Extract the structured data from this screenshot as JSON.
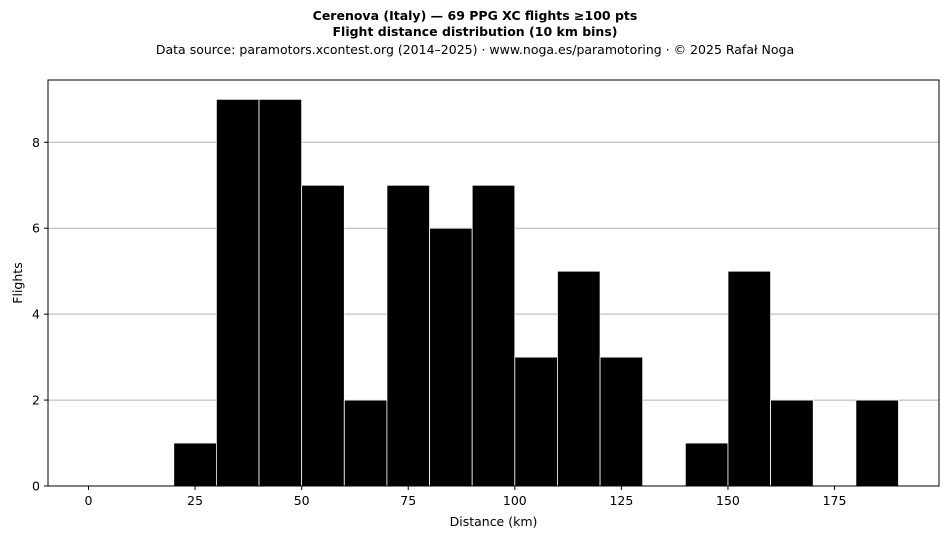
{
  "header": {
    "title_line1": "Cerenova (Italy)  —  69 PPG XC flights ≥100 pts",
    "title_line2": "Flight distance distribution (10 km bins)",
    "subtitle": "Data source: paramotors.xcontest.org (2014–2025)  ·  www.noga.es/paramotoring  ·  © 2025 Rafał Noga"
  },
  "chart_data": {
    "type": "bar",
    "title": "Cerenova (Italy)  —  69 PPG XC flights ≥100 pts",
    "subtitle": "Flight distance distribution (10 km bins)",
    "xlabel": "Distance (km)",
    "ylabel": "Flights",
    "bin_width_km": 10,
    "bins": [
      {
        "start": 20,
        "end": 30,
        "count": 1
      },
      {
        "start": 30,
        "end": 40,
        "count": 9
      },
      {
        "start": 40,
        "end": 50,
        "count": 9
      },
      {
        "start": 50,
        "end": 60,
        "count": 7
      },
      {
        "start": 60,
        "end": 70,
        "count": 2
      },
      {
        "start": 70,
        "end": 80,
        "count": 7
      },
      {
        "start": 80,
        "end": 90,
        "count": 6
      },
      {
        "start": 90,
        "end": 100,
        "count": 7
      },
      {
        "start": 100,
        "end": 110,
        "count": 3
      },
      {
        "start": 110,
        "end": 120,
        "count": 5
      },
      {
        "start": 120,
        "end": 130,
        "count": 3
      },
      {
        "start": 140,
        "end": 150,
        "count": 1
      },
      {
        "start": 150,
        "end": 160,
        "count": 5
      },
      {
        "start": 160,
        "end": 170,
        "count": 2
      },
      {
        "start": 180,
        "end": 190,
        "count": 2
      }
    ],
    "xlim": [
      -9.5,
      199.5
    ],
    "ylim": [
      0,
      9.45
    ],
    "xticks": [
      0,
      25,
      50,
      75,
      100,
      125,
      150,
      175
    ],
    "yticks": [
      0,
      2,
      4,
      6,
      8
    ],
    "grid": "horizontal",
    "bar_color": "#000000",
    "edge_color": "#ffffff",
    "grid_color": "#b0b0b0"
  }
}
